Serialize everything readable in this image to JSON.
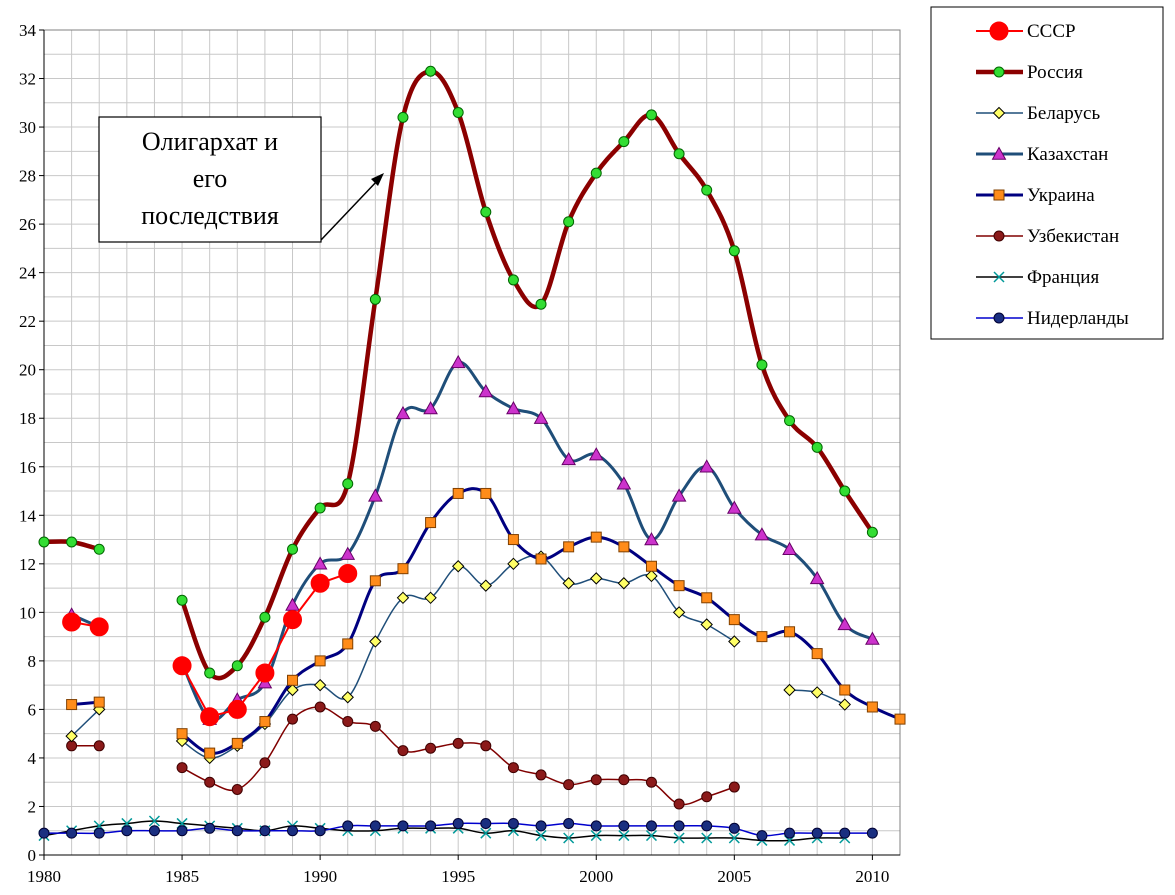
{
  "chart_data": {
    "type": "line",
    "xlim": [
      1980,
      2011
    ],
    "ylim": [
      0,
      34
    ],
    "x_ticks": [
      1980,
      1985,
      1990,
      1995,
      2000,
      2005,
      2010
    ],
    "y_ticks": [
      0,
      2,
      4,
      6,
      8,
      10,
      12,
      14,
      16,
      18,
      20,
      22,
      24,
      26,
      28,
      30,
      32,
      34
    ],
    "grid": true,
    "legend_position": "right",
    "annotation": {
      "lines": [
        "Олигархат и",
        "его",
        "последствия"
      ]
    },
    "series": [
      {
        "name": "СССР",
        "color": "#ff0000",
        "marker": "circle-large",
        "segments": [
          [
            [
              1981,
              9.6
            ],
            [
              1982,
              9.4
            ]
          ],
          [
            [
              1985,
              7.8
            ],
            [
              1986,
              5.7
            ],
            [
              1987,
              6.0
            ],
            [
              1988,
              7.5
            ],
            [
              1989,
              9.7
            ],
            [
              1990,
              11.2
            ],
            [
              1991,
              11.6
            ]
          ]
        ]
      },
      {
        "name": "Россия",
        "color": "#8b0000",
        "marker": "circle-green",
        "segments": [
          [
            [
              1980,
              12.9
            ],
            [
              1981,
              12.9
            ],
            [
              1982,
              12.6
            ]
          ],
          [
            [
              1985,
              10.5
            ],
            [
              1986,
              7.5
            ],
            [
              1987,
              7.8
            ],
            [
              1988,
              9.8
            ],
            [
              1989,
              12.6
            ],
            [
              1990,
              14.3
            ],
            [
              1991,
              15.3
            ],
            [
              1992,
              22.9
            ],
            [
              1993,
              30.4
            ],
            [
              1994,
              32.3
            ],
            [
              1995,
              30.6
            ],
            [
              1996,
              26.5
            ],
            [
              1997,
              23.7
            ],
            [
              1998,
              22.7
            ],
            [
              1999,
              26.1
            ],
            [
              2000,
              28.1
            ],
            [
              2001,
              29.4
            ],
            [
              2002,
              30.5
            ],
            [
              2003,
              28.9
            ],
            [
              2004,
              27.4
            ],
            [
              2005,
              24.9
            ],
            [
              2006,
              20.2
            ],
            [
              2007,
              17.9
            ],
            [
              2008,
              16.8
            ],
            [
              2009,
              15.0
            ],
            [
              2010,
              13.3
            ]
          ]
        ]
      },
      {
        "name": "Беларусь",
        "color": "#1f4e79",
        "marker": "diamond",
        "segments": [
          [
            [
              1981,
              4.9
            ],
            [
              1982,
              6.0
            ]
          ],
          [
            [
              1985,
              4.7
            ],
            [
              1986,
              4.0
            ],
            [
              1987,
              4.5
            ],
            [
              1988,
              5.4
            ],
            [
              1989,
              6.8
            ],
            [
              1990,
              7.0
            ],
            [
              1991,
              6.5
            ],
            [
              1992,
              8.8
            ],
            [
              1993,
              10.6
            ],
            [
              1994,
              10.6
            ],
            [
              1995,
              11.9
            ],
            [
              1996,
              11.1
            ],
            [
              1997,
              12.0
            ],
            [
              1998,
              12.3
            ],
            [
              1999,
              11.2
            ],
            [
              2000,
              11.4
            ],
            [
              2001,
              11.2
            ],
            [
              2002,
              11.5
            ],
            [
              2003,
              10.0
            ],
            [
              2004,
              9.5
            ],
            [
              2005,
              8.8
            ]
          ],
          [
            [
              2007,
              6.8
            ],
            [
              2008,
              6.7
            ],
            [
              2009,
              6.2
            ]
          ]
        ]
      },
      {
        "name": "Казахстан",
        "color": "#1f4e79",
        "marker": "triangle",
        "segments": [
          [
            [
              1981,
              9.9
            ],
            [
              1982,
              9.4
            ]
          ],
          [
            [
              1985,
              7.9
            ],
            [
              1986,
              5.6
            ],
            [
              1987,
              6.4
            ],
            [
              1988,
              7.1
            ],
            [
              1989,
              10.3
            ],
            [
              1990,
              12.0
            ],
            [
              1991,
              12.4
            ],
            [
              1992,
              14.8
            ],
            [
              1993,
              18.2
            ],
            [
              1994,
              18.4
            ],
            [
              1995,
              20.3
            ],
            [
              1996,
              19.1
            ],
            [
              1997,
              18.4
            ],
            [
              1998,
              18.0
            ],
            [
              1999,
              16.3
            ],
            [
              2000,
              16.5
            ],
            [
              2001,
              15.3
            ],
            [
              2002,
              13.0
            ],
            [
              2003,
              14.8
            ],
            [
              2004,
              16.0
            ],
            [
              2005,
              14.3
            ],
            [
              2006,
              13.2
            ],
            [
              2007,
              12.6
            ],
            [
              2008,
              11.4
            ],
            [
              2009,
              9.5
            ],
            [
              2010,
              8.9
            ]
          ]
        ]
      },
      {
        "name": "Украина",
        "color": "#000080",
        "marker": "square",
        "segments": [
          [
            [
              1981,
              6.2
            ],
            [
              1982,
              6.3
            ]
          ],
          [
            [
              1985,
              5.0
            ],
            [
              1986,
              4.2
            ],
            [
              1987,
              4.6
            ],
            [
              1988,
              5.5
            ],
            [
              1989,
              7.2
            ],
            [
              1990,
              8.0
            ],
            [
              1991,
              8.7
            ],
            [
              1992,
              11.3
            ],
            [
              1993,
              11.8
            ],
            [
              1994,
              13.7
            ],
            [
              1995,
              14.9
            ],
            [
              1996,
              14.9
            ],
            [
              1997,
              13.0
            ],
            [
              1998,
              12.2
            ],
            [
              1999,
              12.7
            ],
            [
              2000,
              13.1
            ],
            [
              2001,
              12.7
            ],
            [
              2002,
              11.9
            ],
            [
              2003,
              11.1
            ],
            [
              2004,
              10.6
            ],
            [
              2005,
              9.7
            ],
            [
              2006,
              9.0
            ],
            [
              2007,
              9.2
            ],
            [
              2008,
              8.3
            ],
            [
              2009,
              6.8
            ],
            [
              2010,
              6.1
            ],
            [
              2011,
              5.6
            ]
          ]
        ]
      },
      {
        "name": "Узбекистан",
        "color": "#800000",
        "marker": "circle-dark",
        "segments": [
          [
            [
              1981,
              4.5
            ],
            [
              1982,
              4.5
            ]
          ],
          [
            [
              1985,
              3.6
            ],
            [
              1986,
              3.0
            ],
            [
              1987,
              2.7
            ],
            [
              1988,
              3.8
            ],
            [
              1989,
              5.6
            ],
            [
              1990,
              6.1
            ],
            [
              1991,
              5.5
            ],
            [
              1992,
              5.3
            ],
            [
              1993,
              4.3
            ],
            [
              1994,
              4.4
            ],
            [
              1995,
              4.6
            ],
            [
              1996,
              4.5
            ],
            [
              1997,
              3.6
            ],
            [
              1998,
              3.3
            ],
            [
              1999,
              2.9
            ],
            [
              2000,
              3.1
            ],
            [
              2001,
              3.1
            ],
            [
              2002,
              3.0
            ],
            [
              2003,
              2.1
            ],
            [
              2004,
              2.4
            ],
            [
              2005,
              2.8
            ]
          ]
        ]
      },
      {
        "name": "Франция",
        "color": "#000000",
        "marker": "x",
        "segments": [
          [
            [
              1980,
              0.8
            ],
            [
              1981,
              1.0
            ],
            [
              1982,
              1.2
            ],
            [
              1983,
              1.3
            ],
            [
              1984,
              1.4
            ],
            [
              1985,
              1.3
            ],
            [
              1986,
              1.2
            ],
            [
              1987,
              1.1
            ],
            [
              1988,
              1.0
            ],
            [
              1989,
              1.2
            ],
            [
              1990,
              1.1
            ],
            [
              1991,
              1.0
            ],
            [
              1992,
              1.0
            ],
            [
              1993,
              1.1
            ],
            [
              1994,
              1.1
            ],
            [
              1995,
              1.1
            ],
            [
              1996,
              0.9
            ],
            [
              1997,
              1.0
            ],
            [
              1998,
              0.8
            ],
            [
              1999,
              0.7
            ],
            [
              2000,
              0.8
            ],
            [
              2001,
              0.8
            ],
            [
              2002,
              0.8
            ],
            [
              2003,
              0.7
            ],
            [
              2004,
              0.7
            ],
            [
              2005,
              0.7
            ],
            [
              2006,
              0.6
            ],
            [
              2007,
              0.6
            ],
            [
              2008,
              0.7
            ],
            [
              2009,
              0.7
            ]
          ]
        ]
      },
      {
        "name": "Нидерланды",
        "color": "#0000cd",
        "marker": "circle-navy",
        "segments": [
          [
            [
              1980,
              0.9
            ],
            [
              1981,
              0.9
            ],
            [
              1982,
              0.9
            ],
            [
              1983,
              1.0
            ],
            [
              1984,
              1.0
            ],
            [
              1985,
              1.0
            ],
            [
              1986,
              1.1
            ],
            [
              1987,
              1.0
            ],
            [
              1988,
              1.0
            ],
            [
              1989,
              1.0
            ],
            [
              1990,
              1.0
            ],
            [
              1991,
              1.2
            ],
            [
              1992,
              1.2
            ],
            [
              1993,
              1.2
            ],
            [
              1994,
              1.2
            ],
            [
              1995,
              1.3
            ],
            [
              1996,
              1.3
            ],
            [
              1997,
              1.3
            ],
            [
              1998,
              1.2
            ],
            [
              1999,
              1.3
            ],
            [
              2000,
              1.2
            ],
            [
              2001,
              1.2
            ],
            [
              2002,
              1.2
            ],
            [
              2003,
              1.2
            ],
            [
              2004,
              1.2
            ],
            [
              2005,
              1.1
            ],
            [
              2006,
              0.8
            ],
            [
              2007,
              0.9
            ],
            [
              2008,
              0.9
            ],
            [
              2009,
              0.9
            ],
            [
              2010,
              0.9
            ]
          ]
        ]
      }
    ]
  }
}
